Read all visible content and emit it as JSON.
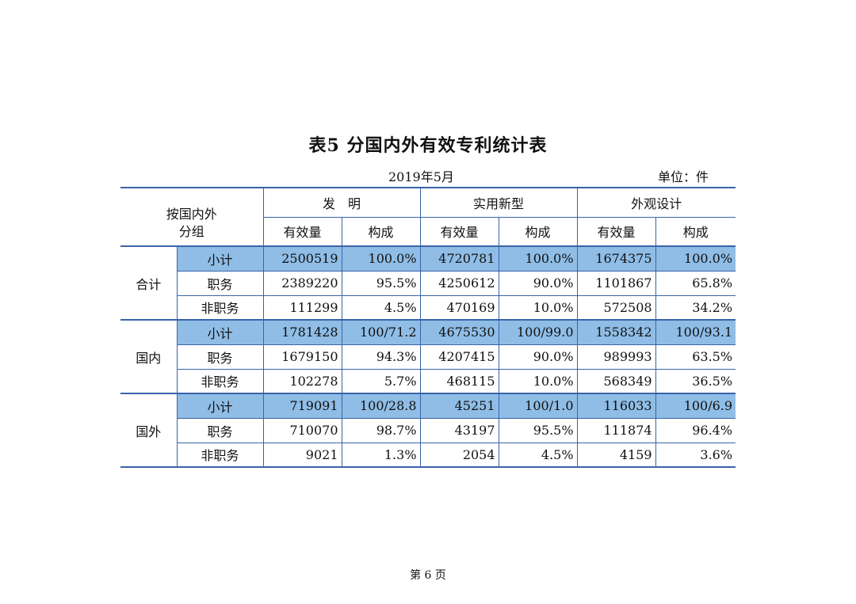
{
  "title": "表5  分国内外有效专利统计表",
  "date": "2019年5月",
  "unit": "单位：件",
  "header": {
    "group_label": "按国内外\n分组",
    "categories": [
      "发　明",
      "实用新型",
      "外观设计"
    ],
    "sub_columns": [
      "有效量",
      "构成",
      "有效量",
      "构成",
      "有效量",
      "构成"
    ]
  },
  "sections": [
    {
      "name": "合计",
      "rows": [
        {
          "label": "小计",
          "values": [
            "2500519",
            "100.0%",
            "4720781",
            "100.0%",
            "1674375",
            "100.0%"
          ]
        },
        {
          "label": "职务",
          "values": [
            "2389220",
            "95.5%",
            "4250612",
            "90.0%",
            "1101867",
            "65.8%"
          ]
        },
        {
          "label": "非职务",
          "values": [
            "111299",
            "4.5%",
            "470169",
            "10.0%",
            "572508",
            "34.2%"
          ]
        }
      ]
    },
    {
      "name": "国内",
      "rows": [
        {
          "label": "小计",
          "values": [
            "1781428",
            "100/71.2",
            "4675530",
            "100/99.0",
            "1558342",
            "100/93.1"
          ]
        },
        {
          "label": "职务",
          "values": [
            "1679150",
            "94.3%",
            "4207415",
            "90.0%",
            "989993",
            "63.5%"
          ]
        },
        {
          "label": "非职务",
          "values": [
            "102278",
            "5.7%",
            "468115",
            "10.0%",
            "568349",
            "36.5%"
          ]
        }
      ]
    },
    {
      "name": "国外",
      "rows": [
        {
          "label": "小计",
          "values": [
            "719091",
            "100/28.8",
            "45251",
            "100/1.0",
            "116033",
            "100/6.9"
          ]
        },
        {
          "label": "职务",
          "values": [
            "710070",
            "98.7%",
            "43197",
            "95.5%",
            "111874",
            "96.4%"
          ]
        },
        {
          "label": "非职务",
          "values": [
            "9021",
            "1.3%",
            "2054",
            "4.5%",
            "4159",
            "3.6%"
          ]
        }
      ]
    }
  ],
  "footer": "第 6 页",
  "colors": {
    "highlight": "#8fbde6",
    "rule": "#3a63a8"
  }
}
